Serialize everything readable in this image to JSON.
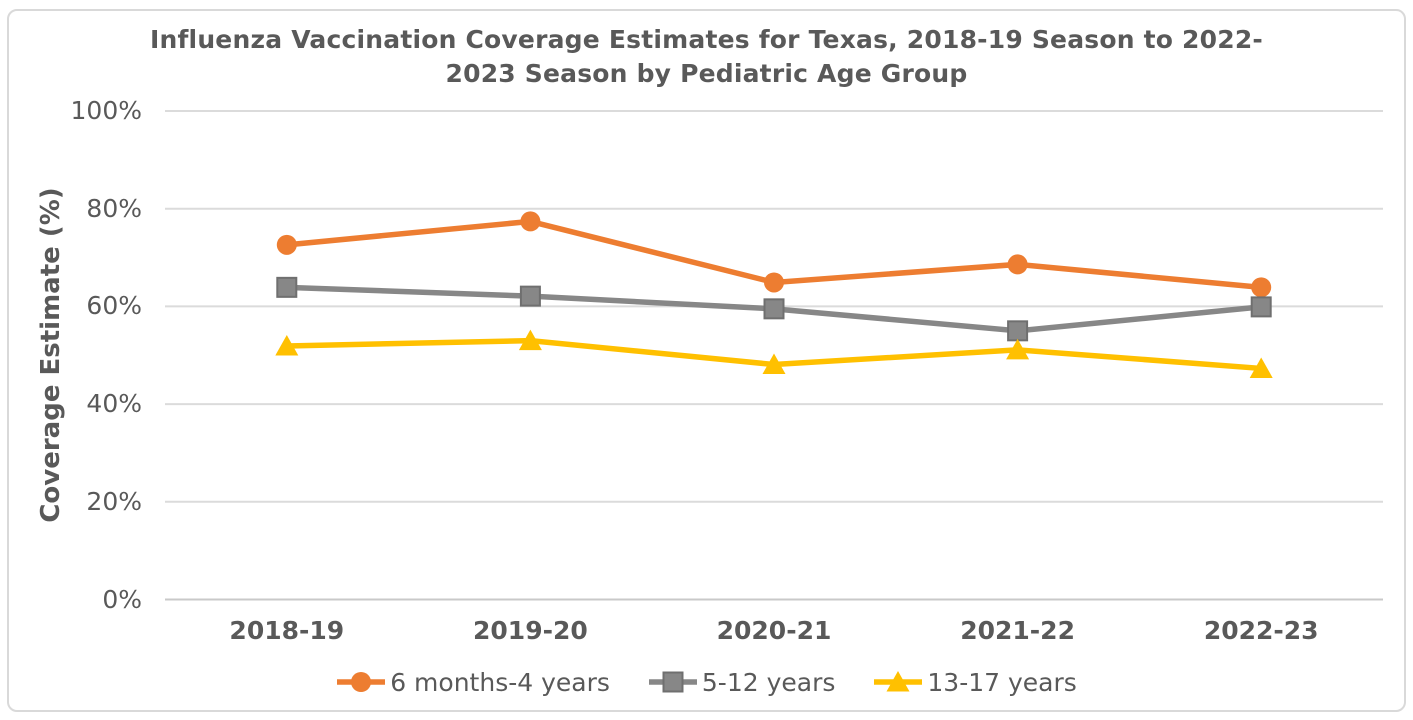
{
  "frame": {
    "border_color": "#D9D9D9",
    "background_color": "#FFFFFF"
  },
  "chart_data": {
    "type": "line",
    "title": "Influenza Vaccination Coverage Estimates for Texas, 2018-19 Season to 2022-2023 Season by Pediatric Age Group",
    "title_lines": [
      "Influenza Vaccination Coverage Estimates for Texas, 2018-19 Season to 2022-",
      "2023 Season by Pediatric Age Group"
    ],
    "xlabel": "",
    "ylabel": "Coverage Estimate (%)",
    "categories": [
      "2018-19",
      "2019-20",
      "2020-21",
      "2021-22",
      "2022-23"
    ],
    "yticks": [
      {
        "value": 0,
        "label": "0%"
      },
      {
        "value": 20,
        "label": "20%"
      },
      {
        "value": 40,
        "label": "40%"
      },
      {
        "value": 60,
        "label": "60%"
      },
      {
        "value": 80,
        "label": "80%"
      },
      {
        "value": 100,
        "label": "100%"
      }
    ],
    "ylim": [
      0,
      100
    ],
    "grid": true,
    "legend_position": "bottom",
    "series": [
      {
        "name": "6 months-4 years",
        "marker": "circle",
        "color": "#ED7D31",
        "values": [
          72.6,
          77.4,
          64.9,
          68.6,
          63.9
        ]
      },
      {
        "name": "5-12 years",
        "marker": "square",
        "color": "#878787",
        "square_stroke": "#6F6F6F",
        "values": [
          63.9,
          62.1,
          59.5,
          55.0,
          59.9
        ]
      },
      {
        "name": "13-17 years",
        "marker": "triangle",
        "color": "#FFC000",
        "values": [
          51.9,
          53.0,
          48.1,
          51.1,
          47.3
        ]
      }
    ],
    "text_color": "#595959",
    "gridline_color": "#DBDBDB",
    "axisline_color": "#C9C9C9"
  }
}
